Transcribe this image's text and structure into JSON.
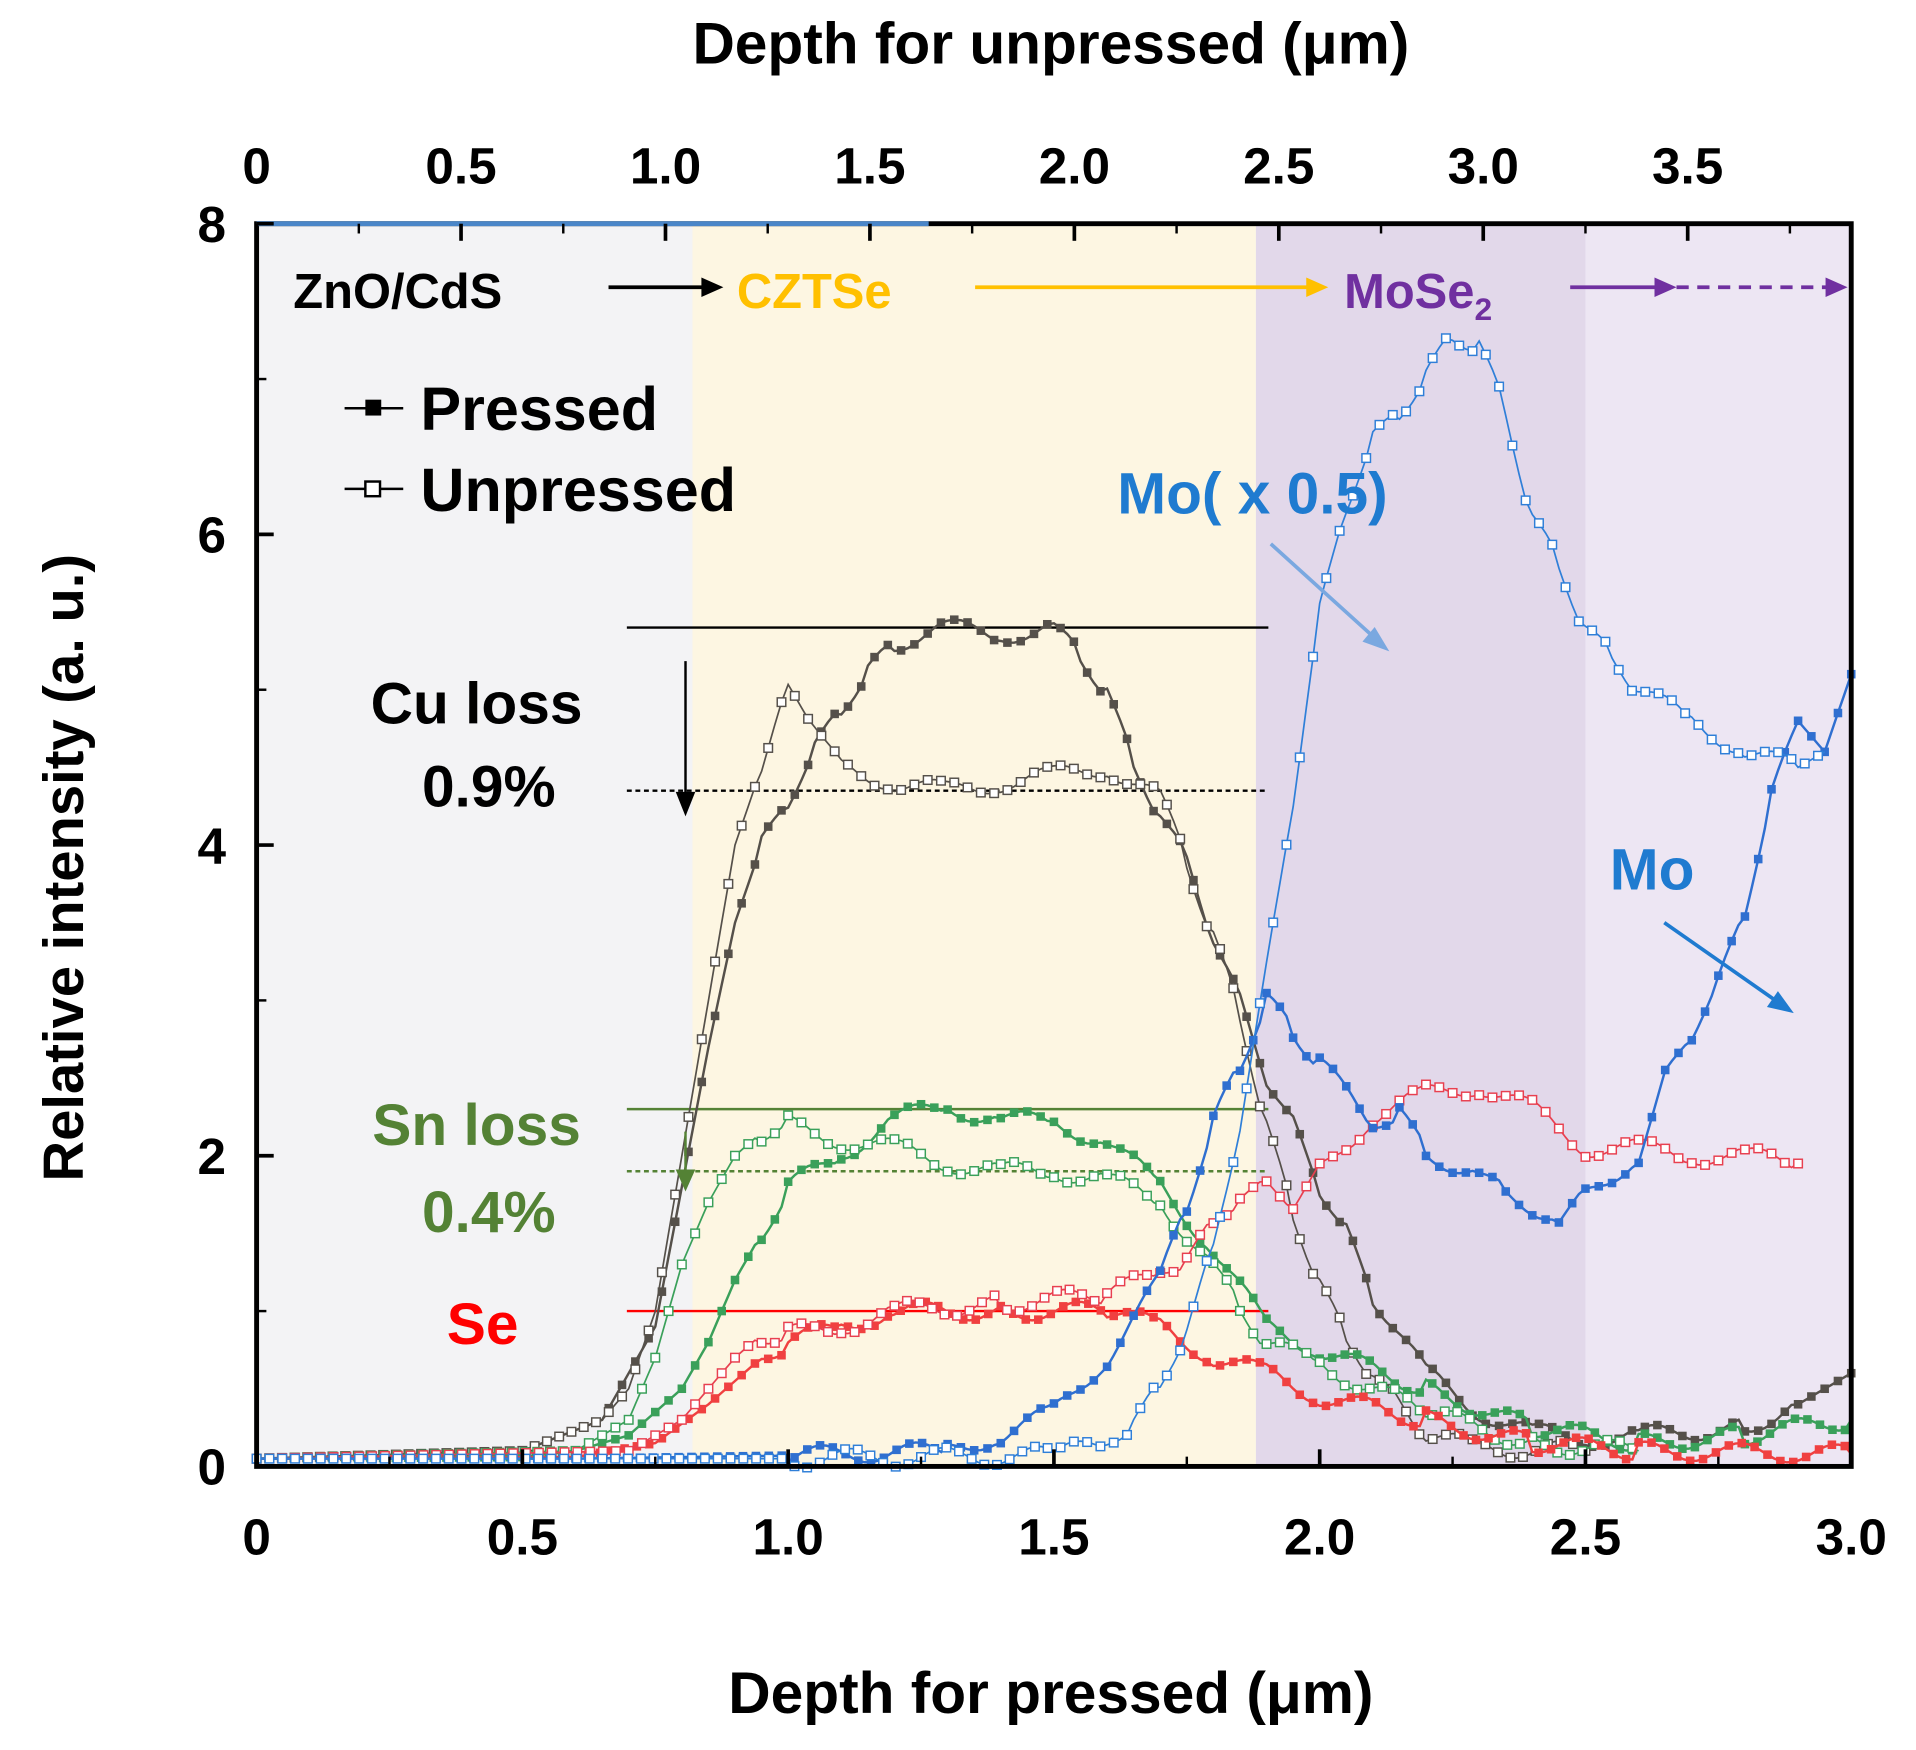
{
  "chart_data": {
    "type": "line",
    "title": "",
    "xlabel": "Depth for pressed (μm)",
    "x2label": "Depth for unpressed (μm)",
    "ylabel": "Relative intensity (a. u.)",
    "xlim": [
      0,
      3.0
    ],
    "x2lim": [
      0,
      3.9
    ],
    "ylim": [
      0,
      8
    ],
    "xticks": [
      "0",
      "0.5",
      "1.0",
      "1.5",
      "2.0",
      "2.5",
      "3.0"
    ],
    "xtick_values": [
      0,
      0.5,
      1.0,
      1.5,
      2.0,
      2.5,
      3.0
    ],
    "x2ticks": [
      "0",
      "0.5",
      "1.0",
      "1.5",
      "2.0",
      "2.5",
      "3.0",
      "3.5"
    ],
    "x2tick_values": [
      0,
      0.5,
      1.0,
      1.5,
      2.0,
      2.5,
      3.0,
      3.5
    ],
    "yticks": [
      "0",
      "2",
      "4",
      "6",
      "8"
    ],
    "ytick_values": [
      0,
      2,
      4,
      6,
      8
    ],
    "grid": false,
    "legend": {
      "placement": "top-left",
      "entries": [
        "Pressed",
        "Unpressed"
      ]
    },
    "regions": [
      {
        "label": "ZnO/CdS",
        "from": 0,
        "to": 0.82,
        "color": "#f3f3f5"
      },
      {
        "label": "CZTSe",
        "from": 0.82,
        "to": 1.88,
        "color": "#fdf6e2",
        "text_color": "#ffc000"
      },
      {
        "label": "MoSe",
        "sub": "2",
        "from": 1.88,
        "to": 2.5,
        "color": "#e2d8ea",
        "text_color": "#7030a0"
      },
      {
        "label": "",
        "from": 2.5,
        "to": 3.0,
        "color": "#ede6f3"
      }
    ],
    "annotations": {
      "cu_loss": "Cu loss",
      "cu_loss_value": "0.9%",
      "sn_loss": "Sn loss",
      "sn_loss_value": "0.4%",
      "se": "Se",
      "mo_half": "Mo( x 0.5)",
      "mo": "Mo"
    },
    "reference_lines": [
      {
        "name": "cu-pressed-level",
        "y": 5.4,
        "color": "#000000",
        "dashed": false
      },
      {
        "name": "cu-unpressed-level",
        "y": 4.35,
        "color": "#000000",
        "dashed": true
      },
      {
        "name": "sn-pressed-level",
        "y": 2.3,
        "color": "#548235",
        "dashed": false
      },
      {
        "name": "sn-unpressed-level",
        "y": 1.9,
        "color": "#548235",
        "dashed": true
      },
      {
        "name": "se-level",
        "y": 1.0,
        "color": "#ff0000",
        "dashed": false
      }
    ],
    "series": [
      {
        "name": "Cu pressed",
        "color": "#55504a",
        "filled": true,
        "x": [
          0,
          0.5,
          0.65,
          0.75,
          0.8,
          0.85,
          0.9,
          0.95,
          1.0,
          1.05,
          1.1,
          1.15,
          1.2,
          1.3,
          1.4,
          1.5,
          1.55,
          1.6,
          1.65,
          1.7,
          1.75,
          1.8,
          1.85,
          1.9,
          1.95,
          2.0,
          2.05,
          2.1,
          2.2,
          2.3,
          2.4,
          2.5,
          2.6,
          2.8,
          2.9,
          3.0
        ],
        "y": [
          0.05,
          0.1,
          0.3,
          0.9,
          1.8,
          2.7,
          3.5,
          4.0,
          4.3,
          4.6,
          4.9,
          5.1,
          5.3,
          5.4,
          5.35,
          5.4,
          5.2,
          5.0,
          4.5,
          4.2,
          3.9,
          3.4,
          3.0,
          2.5,
          2.2,
          1.8,
          1.5,
          1.1,
          0.6,
          0.35,
          0.22,
          0.18,
          0.2,
          0.25,
          0.4,
          0.6
        ]
      },
      {
        "name": "Cu unpressed",
        "color": "#55504a",
        "filled": false,
        "x": [
          0,
          0.5,
          0.65,
          0.7,
          0.75,
          0.8,
          0.85,
          0.9,
          0.95,
          1.0,
          1.05,
          1.1,
          1.2,
          1.3,
          1.4,
          1.5,
          1.6,
          1.7,
          1.75,
          1.8,
          1.85,
          1.9,
          1.95,
          2.0,
          2.05,
          2.1,
          2.15,
          2.2,
          2.3,
          2.5
        ],
        "y": [
          0.05,
          0.1,
          0.3,
          0.5,
          1.0,
          2.0,
          3.0,
          4.0,
          4.5,
          5.0,
          4.8,
          4.5,
          4.4,
          4.35,
          4.4,
          4.45,
          4.5,
          4.3,
          3.9,
          3.4,
          2.9,
          2.2,
          1.6,
          1.2,
          0.8,
          0.6,
          0.4,
          0.2,
          0.12,
          0.1
        ]
      },
      {
        "name": "Sn pressed",
        "color": "#3aa05a",
        "filled": true,
        "x": [
          0,
          0.5,
          0.6,
          0.7,
          0.8,
          0.85,
          0.9,
          0.95,
          1.0,
          1.1,
          1.2,
          1.3,
          1.4,
          1.5,
          1.6,
          1.7,
          1.8,
          1.9,
          2.0,
          2.2,
          2.4,
          2.6,
          2.8,
          3.0
        ],
        "y": [
          0.05,
          0.06,
          0.1,
          0.2,
          0.5,
          0.8,
          1.2,
          1.5,
          1.8,
          2.0,
          2.25,
          2.3,
          2.25,
          2.2,
          2.1,
          1.8,
          1.4,
          0.9,
          0.75,
          0.5,
          0.25,
          0.15,
          0.2,
          0.3
        ]
      },
      {
        "name": "Sn unpressed",
        "color": "#3aa05a",
        "filled": false,
        "x": [
          0,
          0.6,
          0.7,
          0.75,
          0.8,
          0.85,
          0.9,
          0.95,
          1.0,
          1.1,
          1.2,
          1.3,
          1.4,
          1.5,
          1.6,
          1.7,
          1.8,
          1.85,
          1.9,
          2.0,
          2.2,
          2.4,
          2.6
        ],
        "y": [
          0.05,
          0.1,
          0.3,
          0.7,
          1.3,
          1.7,
          2.0,
          2.15,
          2.2,
          2.1,
          2.05,
          1.95,
          1.9,
          1.9,
          1.85,
          1.7,
          1.3,
          1.0,
          0.8,
          0.65,
          0.35,
          0.15,
          0.1
        ]
      },
      {
        "name": "Se pressed",
        "color": "#f04040",
        "filled": true,
        "x": [
          0,
          0.6,
          0.75,
          0.85,
          0.95,
          1.0,
          1.1,
          1.2,
          1.4,
          1.6,
          1.7,
          1.8,
          1.9,
          2.0,
          2.2,
          2.4,
          2.6,
          3.0
        ],
        "y": [
          0.05,
          0.06,
          0.15,
          0.4,
          0.7,
          0.8,
          0.9,
          1.0,
          1.0,
          1.0,
          0.9,
          0.7,
          0.6,
          0.45,
          0.3,
          0.15,
          0.1,
          0.08
        ]
      },
      {
        "name": "Se unpressed",
        "color": "#e84050",
        "filled": false,
        "x": [
          0,
          0.7,
          0.8,
          0.9,
          0.95,
          1.0,
          1.1,
          1.2,
          1.4,
          1.6,
          1.7,
          1.75,
          1.8,
          1.85,
          1.9,
          1.95,
          2.0,
          2.1,
          2.2,
          2.3,
          2.4,
          2.5,
          2.6,
          2.7,
          2.8,
          2.9
        ],
        "y": [
          0.05,
          0.1,
          0.3,
          0.7,
          0.85,
          0.85,
          0.9,
          1.0,
          1.05,
          1.1,
          1.25,
          1.35,
          1.55,
          1.75,
          1.8,
          1.7,
          1.9,
          2.25,
          2.4,
          2.45,
          2.3,
          2.05,
          2.05,
          2.0,
          2.0,
          1.95
        ]
      },
      {
        "name": "Mo pressed",
        "color": "#2f6fd0",
        "filled": true,
        "x": [
          0,
          0.6,
          1.0,
          1.3,
          1.4,
          1.5,
          1.6,
          1.7,
          1.75,
          1.8,
          1.85,
          1.9,
          1.95,
          2.0,
          2.1,
          2.15,
          2.2,
          2.3,
          2.35,
          2.45,
          2.5,
          2.6,
          2.65,
          2.7,
          2.75,
          2.8,
          2.85,
          2.9,
          2.95,
          3.0
        ],
        "y": [
          0.05,
          0.05,
          0.07,
          0.1,
          0.2,
          0.35,
          0.7,
          1.2,
          1.7,
          2.2,
          2.6,
          3.0,
          2.8,
          2.6,
          2.2,
          2.3,
          2.0,
          1.9,
          1.75,
          1.6,
          1.75,
          2.0,
          2.5,
          2.8,
          3.1,
          3.6,
          4.3,
          4.8,
          4.6,
          5.1
        ]
      },
      {
        "name": "Mo unpressed (x0.5)",
        "color": "#2f7fd8",
        "filled": false,
        "x": [
          0,
          1.0,
          1.5,
          1.6,
          1.65,
          1.7,
          1.75,
          1.8,
          1.85,
          1.9,
          1.95,
          2.0,
          2.05,
          2.1,
          2.15,
          2.2,
          2.25,
          2.3,
          2.35,
          2.4,
          2.45,
          2.5,
          2.55,
          2.6,
          2.7,
          2.8,
          2.9,
          2.95
        ],
        "y": [
          0.05,
          0.05,
          0.07,
          0.15,
          0.3,
          0.5,
          0.9,
          1.4,
          2.2,
          3.2,
          4.3,
          5.5,
          6.2,
          6.6,
          6.8,
          7.0,
          7.3,
          7.2,
          6.8,
          6.1,
          5.8,
          5.4,
          5.2,
          5.0,
          4.8,
          4.6,
          4.5,
          4.6
        ]
      }
    ]
  }
}
